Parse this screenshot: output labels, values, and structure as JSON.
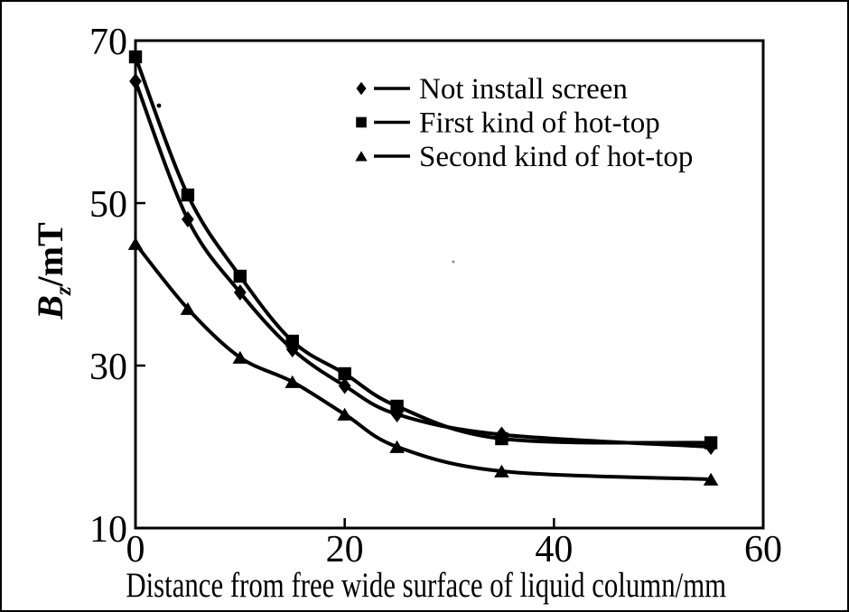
{
  "figure": {
    "background": "#ffffff",
    "border_color": "#000000"
  },
  "chart_data": {
    "type": "line",
    "title": "",
    "xlabel": "Distance from free wide surface of liquid column/mm",
    "ylabel": "Bz/mT",
    "ylabel_parts": {
      "symbol": "B",
      "subscript": "z",
      "unit": "/mT"
    },
    "xlim": [
      0,
      60
    ],
    "ylim": [
      10,
      70
    ],
    "xticks": [
      0,
      20,
      40,
      60
    ],
    "yticks": [
      10,
      30,
      50,
      70
    ],
    "grid": false,
    "legend_position": "inside top-center",
    "legend_dash": "—",
    "ink_color": "#000000",
    "x": [
      0,
      5,
      10,
      15,
      20,
      25,
      35,
      55
    ],
    "series": [
      {
        "name": "Not install screen",
        "marker": "diamond",
        "values": [
          65,
          48,
          39,
          32,
          27.5,
          24,
          21.5,
          20
        ]
      },
      {
        "name": "First kind of hot-top",
        "marker": "square",
        "values": [
          68,
          51,
          41,
          33,
          29,
          25,
          21,
          20.5
        ]
      },
      {
        "name": "Second kind of hot-top",
        "marker": "triangle",
        "values": [
          45,
          37,
          31,
          28,
          24,
          20,
          17,
          16
        ]
      }
    ]
  }
}
